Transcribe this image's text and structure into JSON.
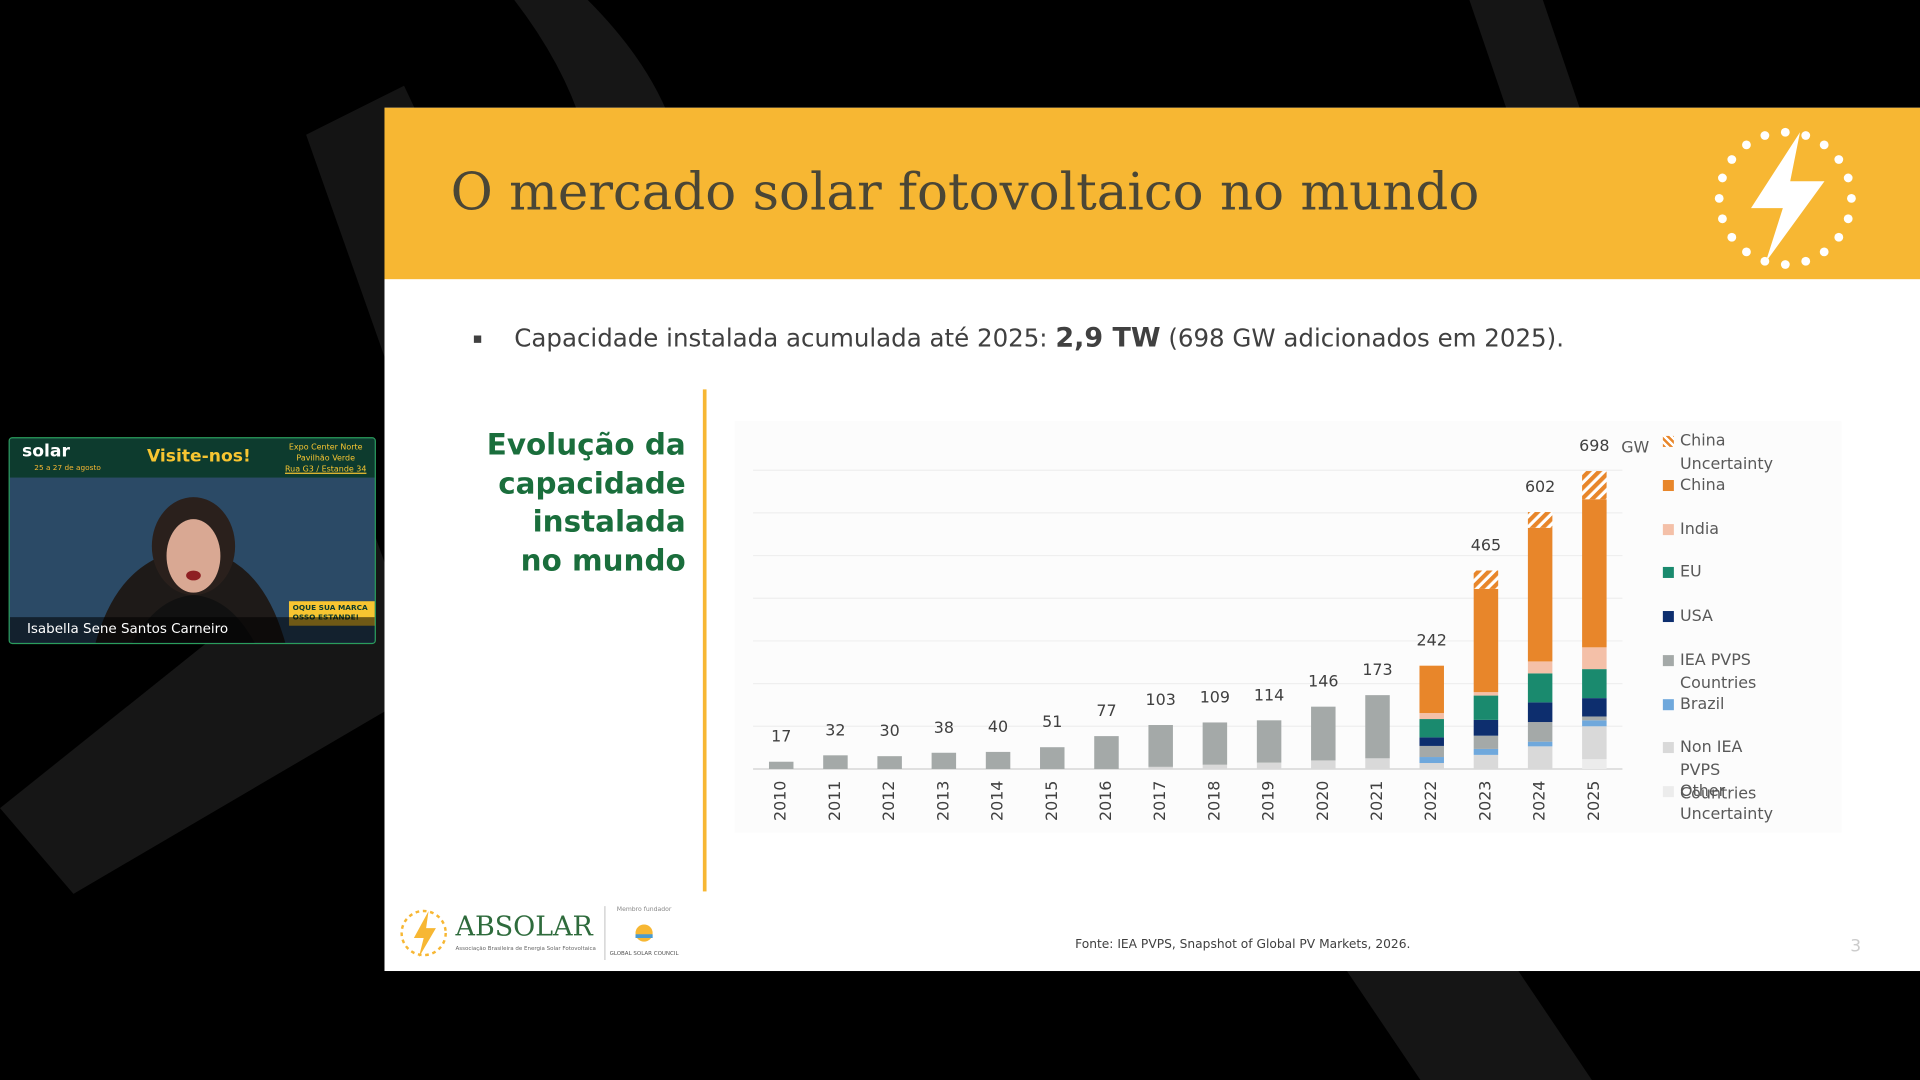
{
  "header": {
    "title": "O mercado solar fotovoltaico no mundo"
  },
  "bullet": {
    "before": "Capacidade instalada acumulada até 2025: ",
    "bold": "2,9 TW",
    "after": " (698 GW adicionados em 2025)."
  },
  "side_heading": "Evolução da capacidade instalada no mundo",
  "chart_data": {
    "type": "stacked_bar",
    "unit_label": "GW",
    "categories": [
      "2010",
      "2011",
      "2012",
      "2013",
      "2014",
      "2015",
      "2016",
      "2017",
      "2018",
      "2019",
      "2020",
      "2021",
      "2022",
      "2023",
      "2024",
      "2025"
    ],
    "totals": [
      17,
      32,
      30,
      38,
      40,
      51,
      77,
      103,
      109,
      114,
      146,
      173,
      242,
      465,
      602,
      698
    ],
    "ylim": [
      0,
      700
    ],
    "grid": true,
    "series": [
      {
        "name": "Other Uncertainty",
        "color": "#ececec",
        "values": [
          0,
          0,
          0,
          0,
          0,
          0,
          0,
          0,
          0,
          0,
          0,
          0,
          0,
          0,
          0,
          23
        ]
      },
      {
        "name": "Non IEA PVPS Countries",
        "color": "#d9d9d9",
        "values": [
          0,
          0,
          0,
          0,
          0,
          0,
          0,
          5,
          10,
          15,
          20,
          25,
          14,
          33,
          53,
          77
        ]
      },
      {
        "name": "Brazil",
        "color": "#6fa8dc",
        "values": [
          0,
          0,
          0,
          0,
          0,
          0,
          0,
          0,
          0,
          0,
          0,
          0,
          14,
          14,
          11,
          14
        ]
      },
      {
        "name": "IEA PVPS Countries",
        "color": "#a4a9a8",
        "values": [
          17,
          32,
          30,
          38,
          40,
          51,
          77,
          98,
          99,
          99,
          126,
          148,
          26,
          31,
          46,
          9
        ]
      },
      {
        "name": "USA",
        "color": "#0d2e6e",
        "values": [
          0,
          0,
          0,
          0,
          0,
          0,
          0,
          0,
          0,
          0,
          0,
          0,
          20,
          37,
          46,
          43
        ]
      },
      {
        "name": "EU",
        "color": "#1a8a6e",
        "values": [
          0,
          0,
          0,
          0,
          0,
          0,
          0,
          0,
          0,
          0,
          0,
          0,
          43,
          57,
          68,
          68
        ]
      },
      {
        "name": "India",
        "color": "#f4c0a8",
        "values": [
          0,
          0,
          0,
          0,
          0,
          0,
          0,
          0,
          0,
          0,
          0,
          0,
          14,
          8,
          28,
          51
        ]
      },
      {
        "name": "China",
        "color": "#e8862a",
        "values": [
          0,
          0,
          0,
          0,
          0,
          0,
          0,
          0,
          0,
          0,
          0,
          0,
          111,
          242,
          313,
          347
        ]
      },
      {
        "name": "China Uncertainty",
        "color": "#e8862a",
        "pattern": "hatch",
        "values": [
          0,
          0,
          0,
          0,
          0,
          0,
          0,
          0,
          0,
          0,
          0,
          0,
          0,
          43,
          37,
          66
        ]
      }
    ],
    "legend_order": [
      8,
      7,
      6,
      5,
      4,
      3,
      2,
      1,
      0
    ]
  },
  "footer": {
    "source": "Fonte: IEA PVPS, Snapshot of Global PV Markets, 2026.",
    "page": "3",
    "logo": "ABSOLAR",
    "logo_subtitle": "Associação Brasileira de Energia Solar Fotovoltaica",
    "member": "Membro fundador",
    "council": "GLOBAL SOLAR COUNCIL"
  },
  "video": {
    "brand": "solar",
    "cta": "Visite-nos!",
    "dates": "25 a 27 de agosto",
    "venue": [
      "Expo Center Norte",
      "Pavilhão Verde",
      "Rua G3 / Estande 34"
    ],
    "badge": [
      "OQUE SUA MARCA",
      "OSSO ESTANDE!"
    ],
    "participant": "Isabella Sene Santos Carneiro"
  }
}
